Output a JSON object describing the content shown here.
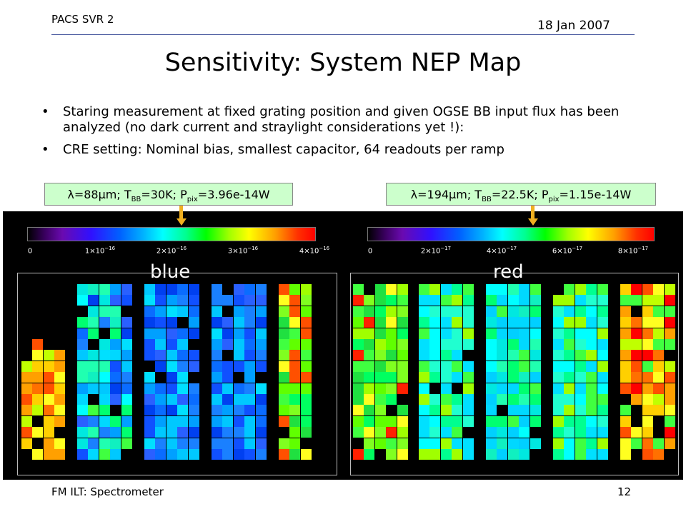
{
  "header": {
    "left": "PACS SVR 2",
    "right": "18 Jan 2007"
  },
  "title": "Sensitivity: System NEP Map",
  "bullets": [
    "Staring measurement at fixed grating position and given OGSE BB input flux has been analyzed (no dark current and straylight considerations yet !):",
    "CRE setting: Nominal bias, smallest capacitor, 64 readouts per ramp"
  ],
  "blue_label": {
    "lambda": "λ=88µm; T",
    "t_sub": "BB",
    "t_val": "=30K; P",
    "p_sub": "pix",
    "p_val": "=3.96e-14W"
  },
  "red_label": {
    "lambda": "λ=194µm; T",
    "t_sub": "BB",
    "t_val": "=22.5K; P",
    "p_sub": "pix",
    "p_val": "=1.15e-14W"
  },
  "blue_panel": {
    "name": "blue",
    "ticks": [
      {
        "base": "0",
        "exp": ""
      },
      {
        "base": "1×10",
        "exp": "−16"
      },
      {
        "base": "2×10",
        "exp": "−16"
      },
      {
        "base": "3×10",
        "exp": "−16"
      },
      {
        "base": "4×10",
        "exp": "−16"
      }
    ]
  },
  "red_panel": {
    "name": "red",
    "ticks": [
      {
        "base": "0",
        "exp": ""
      },
      {
        "base": "2×10",
        "exp": "−17"
      },
      {
        "base": "4×10",
        "exp": "−17"
      },
      {
        "base": "6×10",
        "exp": "−17"
      },
      {
        "base": "8×10",
        "exp": "−17"
      }
    ]
  },
  "footer": {
    "left": "FM ILT: Spectrometer",
    "page": "12"
  }
}
